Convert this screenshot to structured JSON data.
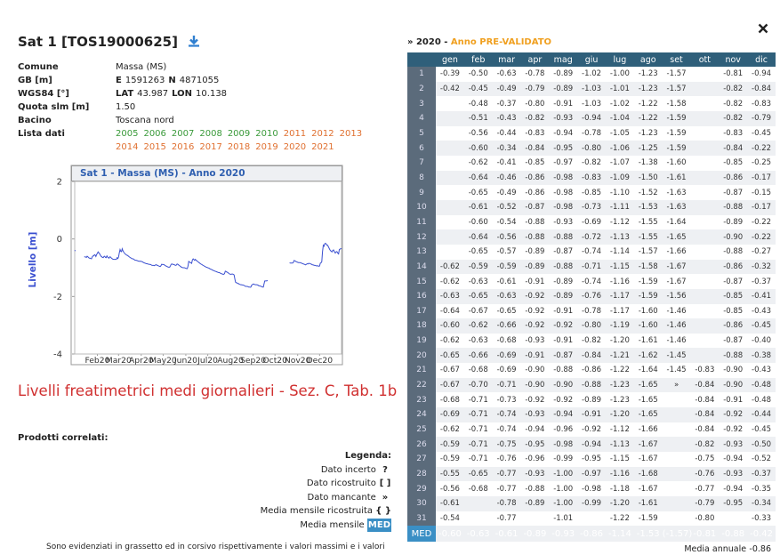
{
  "header": {
    "title": "Sat 1 [TOS19000625]"
  },
  "info": [
    {
      "label": "Comune",
      "value": [
        {
          "text": "Massa (MS)",
          "bold": false
        }
      ]
    },
    {
      "label": "GB [m]",
      "value": [
        {
          "text": "E",
          "bold": true
        },
        {
          "text": "1591263",
          "bold": false
        },
        {
          "text": "N",
          "bold": true
        },
        {
          "text": "4871055",
          "bold": false
        }
      ]
    },
    {
      "label": "WGS84 [°]",
      "value": [
        {
          "text": "LAT",
          "bold": true
        },
        {
          "text": "43.987",
          "bold": false
        },
        {
          "text": "LON",
          "bold": true
        },
        {
          "text": "10.138",
          "bold": false
        }
      ]
    },
    {
      "label": "Quota slm [m]",
      "value": [
        {
          "text": "1.50",
          "bold": false
        }
      ]
    },
    {
      "label": "Bacino",
      "value": [
        {
          "text": "Toscana nord",
          "bold": false
        }
      ]
    },
    {
      "label": "Lista dati",
      "value": []
    }
  ],
  "years": [
    {
      "text": "2005",
      "color": "#3a9a3a"
    },
    {
      "text": "2006",
      "color": "#3a9a3a"
    },
    {
      "text": "2007",
      "color": "#3a9a3a"
    },
    {
      "text": "2008",
      "color": "#3a9a3a"
    },
    {
      "text": "2009",
      "color": "#3a9a3a"
    },
    {
      "text": "2010",
      "color": "#3a9a3a"
    },
    {
      "text": "2011",
      "color": "#e07030"
    },
    {
      "text": "2012",
      "color": "#e07030"
    },
    {
      "text": "2013",
      "color": "#e07030"
    },
    {
      "text": "2014",
      "color": "#e07030"
    },
    {
      "text": "2015",
      "color": "#e07030"
    },
    {
      "text": "2016",
      "color": "#e07030"
    },
    {
      "text": "2017",
      "color": "#e07030"
    },
    {
      "text": "2018",
      "color": "#e07030"
    },
    {
      "text": "2019",
      "color": "#e07030"
    },
    {
      "text": "2020",
      "color": "#e07030"
    },
    {
      "text": "2021",
      "color": "#e07030"
    }
  ],
  "chart": {
    "title": "Sat 1 - Massa (MS) - Anno 2020",
    "ylabel": "Livello [m]",
    "ylim": [
      -4,
      2
    ],
    "yticks": [
      2,
      0,
      -2,
      -4
    ],
    "xlim": [
      1,
      366
    ],
    "xticks": [
      {
        "value": 32,
        "label": "Feb20"
      },
      {
        "value": 61,
        "label": "Mar20"
      },
      {
        "value": 92,
        "label": "Apr20"
      },
      {
        "value": 122,
        "label": "May20"
      },
      {
        "value": 153,
        "label": "Jun20"
      },
      {
        "value": 183,
        "label": "Jul20"
      },
      {
        "value": 214,
        "label": "Aug20"
      },
      {
        "value": 245,
        "label": "Sep20"
      },
      {
        "value": 275,
        "label": "Oct20"
      },
      {
        "value": 306,
        "label": "Nov20"
      },
      {
        "value": 336,
        "label": "Dec20"
      }
    ],
    "color": "#3a4fd0"
  },
  "section": {
    "title": "Livelli freatimetrici medi giornalieri - Sez. C, Tab. 1b",
    "related": "Prodotti correlati:"
  },
  "legend": {
    "title": "Legenda:",
    "items": [
      {
        "label": "Dato incerto",
        "symbol": "?"
      },
      {
        "label": "Dato ricostruito",
        "symbol": "[ ]"
      },
      {
        "label": "Dato mancante",
        "symbol": "»"
      },
      {
        "label": "Media mensile ricostruita",
        "symbol": "{ }"
      },
      {
        "label": "Media mensile",
        "symbol": "MED"
      }
    ]
  },
  "note": "Sono evidenziati in grassetto ed in corsivo rispettivamente i valori massimi e i valori",
  "table": {
    "marker": "»",
    "year": 2020,
    "dash": "-",
    "status": "Anno PRE-VALIDATO",
    "months": [
      "gen",
      "feb",
      "mar",
      "apr",
      "mag",
      "giu",
      "lug",
      "ago",
      "set",
      "ott",
      "nov",
      "dic"
    ],
    "rows": [
      {
        "day": "1",
        "cells": [
          "-0.39",
          "-0.50",
          "-0.63",
          "-0.78",
          "-0.89",
          "-1.02",
          "-1.00",
          "-1.23",
          "-1.57",
          null,
          "-0.81",
          "-0.94"
        ]
      },
      {
        "day": "2",
        "cells": [
          "-0.42",
          "-0.45",
          "-0.49",
          "-0.79",
          "-0.89",
          "-1.03",
          "-1.01",
          "-1.23",
          "-1.57",
          null,
          "-0.82",
          "-0.84"
        ]
      },
      {
        "day": "3",
        "cells": [
          null,
          "-0.48",
          "-0.37",
          "-0.80",
          "-0.91",
          "-1.03",
          "-1.02",
          "-1.22",
          "-1.58",
          null,
          "-0.82",
          "-0.83"
        ]
      },
      {
        "day": "4",
        "cells": [
          null,
          "-0.51",
          "-0.43",
          "-0.82",
          "-0.93",
          "-0.94",
          "-1.04",
          "-1.22",
          "-1.59",
          null,
          "-0.82",
          "-0.79"
        ]
      },
      {
        "day": "5",
        "cells": [
          null,
          "-0.56",
          "-0.44",
          "-0.83",
          "-0.94",
          "-0.78",
          "-1.05",
          "-1.23",
          "-1.59",
          null,
          "-0.83",
          "-0.45"
        ]
      },
      {
        "day": "6",
        "cells": [
          null,
          "-0.60",
          "-0.34",
          "-0.84",
          "-0.95",
          "-0.80",
          "-1.06",
          "-1.25",
          "-1.59",
          null,
          "-0.84",
          "-0.22"
        ]
      },
      {
        "day": "7",
        "cells": [
          null,
          "-0.62",
          "-0.41",
          "-0.85",
          "-0.97",
          "-0.82",
          "-1.07",
          "-1.38",
          "-1.60",
          null,
          "-0.85",
          "-0.25"
        ]
      },
      {
        "day": "8",
        "cells": [
          null,
          "-0.64",
          "-0.46",
          "-0.86",
          "-0.98",
          "-0.83",
          "-1.09",
          "-1.50",
          "-1.61",
          null,
          "-0.86",
          "-0.17"
        ]
      },
      {
        "day": "9",
        "cells": [
          null,
          "-0.65",
          "-0.49",
          "-0.86",
          "-0.98",
          "-0.85",
          "-1.10",
          "-1.52",
          "-1.63",
          null,
          "-0.87",
          "-0.15"
        ]
      },
      {
        "day": "10",
        "cells": [
          null,
          "-0.61",
          "-0.52",
          "-0.87",
          "-0.98",
          "-0.73",
          "-1.11",
          "-1.53",
          "-1.63",
          null,
          "-0.88",
          "-0.17"
        ]
      },
      {
        "day": "11",
        "cells": [
          null,
          "-0.60",
          "-0.54",
          "-0.88",
          "-0.93",
          "-0.69",
          "-1.12",
          "-1.55",
          "-1.64",
          null,
          "-0.89",
          "-0.22"
        ]
      },
      {
        "day": "12",
        "cells": [
          null,
          "-0.64",
          "-0.56",
          "-0.88",
          "-0.88",
          "-0.72",
          "-1.13",
          "-1.55",
          "-1.65",
          null,
          "-0.90",
          "-0.22"
        ]
      },
      {
        "day": "13",
        "cells": [
          null,
          "-0.65",
          "-0.57",
          "-0.89",
          "-0.87",
          "-0.74",
          "-1.14",
          "-1.57",
          "-1.66",
          null,
          "-0.88",
          "-0.27"
        ]
      },
      {
        "day": "14",
        "cells": [
          "-0.62",
          "-0.59",
          "-0.59",
          "-0.89",
          "-0.88",
          "-0.71",
          "-1.15",
          "-1.58",
          "-1.67",
          null,
          "-0.86",
          "-0.32"
        ]
      },
      {
        "day": "15",
        "cells": [
          "-0.62",
          "-0.63",
          "-0.61",
          "-0.91",
          "-0.89",
          "-0.74",
          "-1.16",
          "-1.59",
          "-1.67",
          null,
          "-0.87",
          "-0.37"
        ]
      },
      {
        "day": "16",
        "cells": [
          "-0.63",
          "-0.65",
          "-0.63",
          "-0.92",
          "-0.89",
          "-0.76",
          "-1.17",
          "-1.59",
          "-1.56",
          null,
          "-0.85",
          "-0.41"
        ]
      },
      {
        "day": "17",
        "cells": [
          "-0.64",
          "-0.67",
          "-0.65",
          "-0.92",
          "-0.91",
          "-0.78",
          "-1.17",
          "-1.60",
          "-1.46",
          null,
          "-0.85",
          "-0.43"
        ]
      },
      {
        "day": "18",
        "cells": [
          "-0.60",
          "-0.62",
          "-0.66",
          "-0.92",
          "-0.92",
          "-0.80",
          "-1.19",
          "-1.60",
          "-1.46",
          null,
          "-0.86",
          "-0.45"
        ]
      },
      {
        "day": "19",
        "cells": [
          "-0.62",
          "-0.63",
          "-0.68",
          "-0.93",
          "-0.91",
          "-0.82",
          "-1.20",
          "-1.61",
          "-1.46",
          null,
          "-0.87",
          "-0.40"
        ]
      },
      {
        "day": "20",
        "cells": [
          "-0.65",
          "-0.66",
          "-0.69",
          "-0.91",
          "-0.87",
          "-0.84",
          "-1.21",
          "-1.62",
          "-1.45",
          null,
          "-0.88",
          "-0.38"
        ]
      },
      {
        "day": "21",
        "cells": [
          "-0.67",
          "-0.68",
          "-0.69",
          "-0.90",
          "-0.88",
          "-0.86",
          "-1.22",
          "-1.64",
          "-1.45",
          "-0.83",
          "-0.90",
          "-0.43"
        ]
      },
      {
        "day": "22",
        "cells": [
          "-0.67",
          "-0.70",
          "-0.71",
          "-0.90",
          "-0.90",
          "-0.88",
          "-1.23",
          "-1.65",
          "»",
          "-0.84",
          "-0.90",
          "-0.48"
        ]
      },
      {
        "day": "23",
        "cells": [
          "-0.68",
          "-0.71",
          "-0.73",
          "-0.92",
          "-0.92",
          "-0.89",
          "-1.23",
          "-1.65",
          null,
          "-0.84",
          "-0.91",
          "-0.48"
        ]
      },
      {
        "day": "24",
        "cells": [
          "-0.69",
          "-0.71",
          "-0.74",
          "-0.93",
          "-0.94",
          "-0.91",
          "-1.20",
          "-1.65",
          null,
          "-0.84",
          "-0.92",
          "-0.44"
        ]
      },
      {
        "day": "25",
        "cells": [
          "-0.62",
          "-0.71",
          "-0.74",
          "-0.94",
          "-0.96",
          "-0.92",
          "-1.12",
          "-1.66",
          null,
          "-0.84",
          "-0.92",
          "-0.45"
        ]
      },
      {
        "day": "26",
        "cells": [
          "-0.59",
          "-0.71",
          "-0.75",
          "-0.95",
          "-0.98",
          "-0.94",
          "-1.13",
          "-1.67",
          null,
          "-0.82",
          "-0.93",
          "-0.50"
        ]
      },
      {
        "day": "27",
        "cells": [
          "-0.59",
          "-0.71",
          "-0.76",
          "-0.96",
          "-0.99",
          "-0.95",
          "-1.15",
          "-1.67",
          null,
          "-0.75",
          "-0.94",
          "-0.52"
        ]
      },
      {
        "day": "28",
        "cells": [
          "-0.55",
          "-0.65",
          "-0.77",
          "-0.93",
          "-1.00",
          "-0.97",
          "-1.16",
          "-1.68",
          null,
          "-0.76",
          "-0.93",
          "-0.37"
        ]
      },
      {
        "day": "29",
        "cells": [
          "-0.56",
          "-0.68",
          "-0.77",
          "-0.88",
          "-1.00",
          "-0.98",
          "-1.18",
          "-1.67",
          null,
          "-0.77",
          "-0.94",
          "-0.35"
        ]
      },
      {
        "day": "30",
        "cells": [
          "-0.61",
          null,
          "-0.78",
          "-0.89",
          "-1.00",
          "-0.99",
          "-1.20",
          "-1.61",
          null,
          "-0.79",
          "-0.95",
          "-0.34"
        ]
      },
      {
        "day": "31",
        "cells": [
          "-0.54",
          null,
          "-0.77",
          null,
          "-1.01",
          null,
          "-1.22",
          "-1.59",
          null,
          "-0.80",
          null,
          "-0.33"
        ]
      }
    ],
    "med": {
      "day": "MED",
      "cells": [
        "-0.60",
        "-0.63",
        "-0.61",
        "-0.89",
        "-0.93",
        "-0.86",
        "-1.14",
        "-1.53",
        "(-1.57)",
        "-0.81",
        "-0.88",
        "-0.42"
      ]
    },
    "annual": {
      "label": "Media annuale",
      "value": "-0.86"
    }
  }
}
